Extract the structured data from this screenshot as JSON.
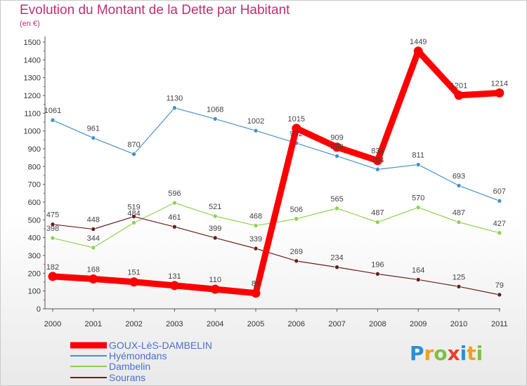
{
  "title": "Evolution du Montant de la Dette par Habitant",
  "subtitle": "(en €)",
  "logo": "Proxiti",
  "chart_data": {
    "type": "line",
    "title": "Evolution du Montant de la Dette par Habitant",
    "ylabel": "(en €)",
    "xlabel": "",
    "x": [
      "2000",
      "2001",
      "2002",
      "2003",
      "2004",
      "2005",
      "2006",
      "2007",
      "2008",
      "2009",
      "2010",
      "2011"
    ],
    "yticks": [
      "0",
      "100",
      "200",
      "300",
      "400",
      "500",
      "600",
      "700",
      "800",
      "900",
      "1000",
      "1100",
      "1200",
      "1300",
      "1400",
      "1500"
    ],
    "ylim": [
      0,
      1500
    ],
    "grid": false,
    "legend_position": "bottom-left",
    "series": [
      {
        "name": "GOUX-LèS-DAMBELIN",
        "color": "#ff0000",
        "values": [
          182,
          168,
          151,
          131,
          110,
          88,
          1015,
          909,
          834,
          1449,
          1201,
          1214
        ],
        "labels": [
          "182",
          "168",
          "151",
          "131",
          "110",
          "88",
          "1015",
          "909",
          "834",
          "1449",
          "1201",
          "1214"
        ]
      },
      {
        "name": "Hyémondans",
        "color": "#4a90c8",
        "values": [
          1061,
          961,
          870,
          1130,
          1068,
          1002,
          932,
          859,
          784,
          811,
          693,
          607
        ],
        "labels": [
          "1061",
          "961",
          "870",
          "1130",
          "1068",
          "1002",
          "932",
          "859",
          "784",
          "811",
          "693",
          "607"
        ]
      },
      {
        "name": "Dambelin",
        "color": "#8fd14f",
        "values": [
          398,
          344,
          484,
          596,
          521,
          468,
          506,
          565,
          487,
          570,
          487,
          427
        ],
        "labels": [
          "398",
          "344",
          "484",
          "596",
          "521",
          "468",
          "506",
          "565",
          "487",
          "570",
          "487",
          "427"
        ]
      },
      {
        "name": "Sourans",
        "color": "#6b1e1e",
        "values": [
          475,
          448,
          519,
          461,
          399,
          339,
          269,
          234,
          196,
          164,
          125,
          79
        ],
        "labels": [
          "475",
          "448",
          "519",
          "461",
          "399",
          "339",
          "269",
          "234",
          "196",
          "164",
          "125",
          "79"
        ]
      }
    ]
  }
}
